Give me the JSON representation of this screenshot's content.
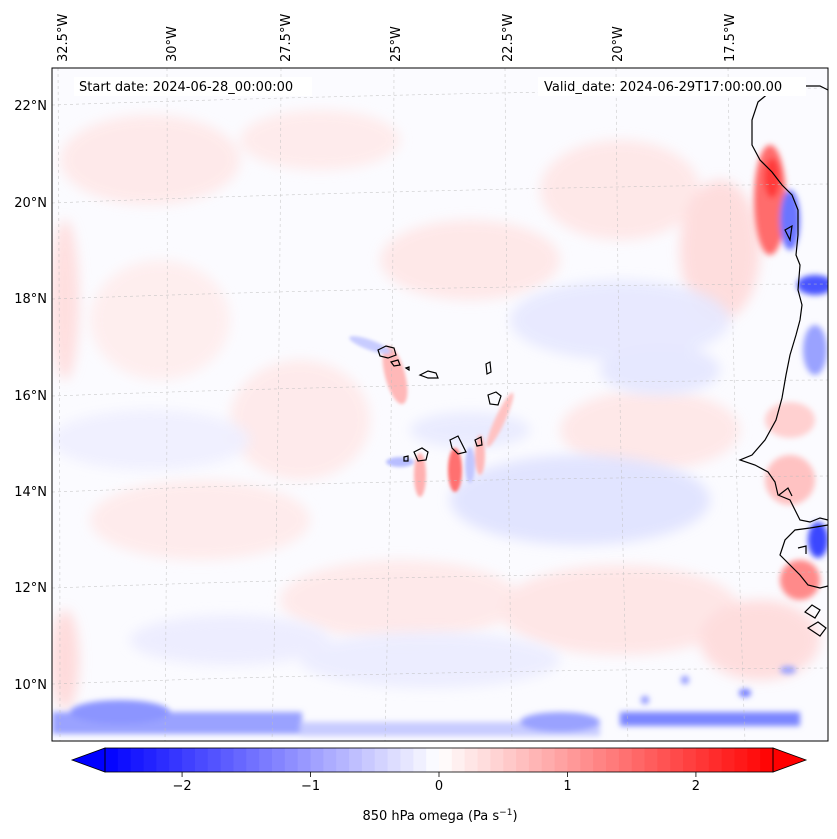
{
  "map": {
    "start_date": "Start date: 2024-06-28_00:00:00",
    "valid_date": "Valid_date: 2024-06-29T17:00:00.00",
    "lon_labels": [
      "32.5°W",
      "30°W",
      "27.5°W",
      "25°W",
      "22.5°W",
      "20°W",
      "17.5°W"
    ],
    "lat_labels": [
      "22°N",
      "20°N",
      "18°N",
      "16°N",
      "14°N",
      "12°N",
      "10°N"
    ],
    "projection": "lambert",
    "field": "850 hPa omega"
  },
  "colorbar": {
    "ticks": [
      "−2",
      "−1",
      "0",
      "1",
      "2"
    ],
    "tick_values": [
      -2,
      -1,
      0,
      1,
      2
    ],
    "range": [
      -2.6,
      2.6
    ],
    "extend": "both",
    "label_main": "850 hPa omega (Pa s",
    "label_exp": "−1",
    "label_end": ")",
    "low_color": "#0000ff",
    "mid_color": "#ffffff",
    "high_color": "#ff0000"
  }
}
